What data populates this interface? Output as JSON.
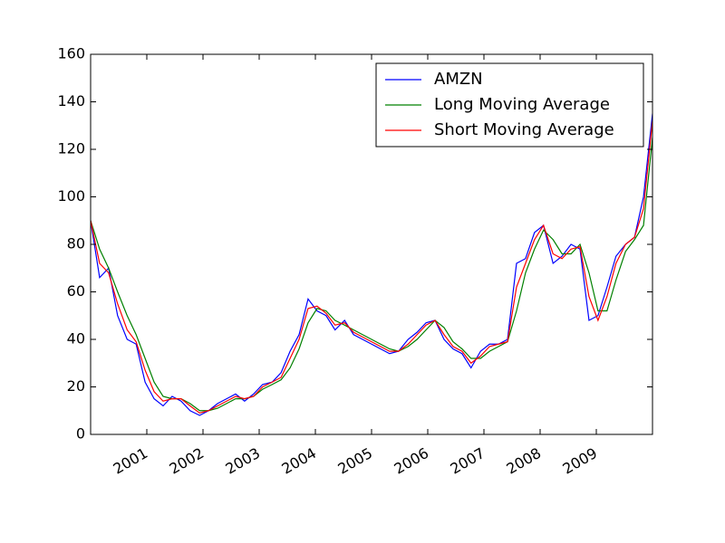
{
  "chart_data": {
    "type": "line",
    "x": [
      2000.0,
      2000.16,
      2000.32,
      2000.48,
      2000.65,
      2000.81,
      2000.97,
      2001.13,
      2001.29,
      2001.45,
      2001.61,
      2001.77,
      2001.94,
      2002.1,
      2002.26,
      2002.42,
      2002.58,
      2002.74,
      2002.9,
      2003.06,
      2003.23,
      2003.39,
      2003.55,
      2003.71,
      2003.87,
      2004.03,
      2004.19,
      2004.35,
      2004.52,
      2004.68,
      2004.84,
      2005.0,
      2005.16,
      2005.32,
      2005.48,
      2005.65,
      2005.81,
      2005.97,
      2006.13,
      2006.29,
      2006.45,
      2006.61,
      2006.77,
      2006.94,
      2007.1,
      2007.26,
      2007.42,
      2007.58,
      2007.74,
      2007.9,
      2008.06,
      2008.23,
      2008.39,
      2008.55,
      2008.71,
      2008.87,
      2009.03,
      2009.19,
      2009.35,
      2009.52,
      2009.68,
      2009.84,
      2010.0
    ],
    "series": [
      {
        "name": "AMZN",
        "color": "#0000ff",
        "values": [
          90,
          66,
          70,
          50,
          40,
          38,
          22,
          15,
          12,
          16,
          14,
          10,
          8,
          10,
          13,
          15,
          17,
          14,
          17,
          21,
          22,
          26,
          35,
          42,
          57,
          52,
          50,
          44,
          48,
          42,
          40,
          38,
          36,
          34,
          35,
          40,
          43,
          47,
          48,
          40,
          36,
          34,
          28,
          35,
          38,
          38,
          40,
          72,
          74,
          85,
          88,
          72,
          75,
          80,
          78,
          48,
          50,
          62,
          75,
          80,
          83,
          100,
          135
        ]
      },
      {
        "name": "Long Moving Average",
        "color": "#008000",
        "values": [
          90,
          78,
          70,
          60,
          50,
          42,
          32,
          22,
          16,
          15,
          15,
          13,
          10,
          10,
          11,
          13,
          15,
          15,
          16,
          19,
          21,
          23,
          28,
          36,
          47,
          53,
          52,
          48,
          46,
          44,
          42,
          40,
          38,
          36,
          35,
          37,
          40,
          44,
          48,
          45,
          39,
          36,
          32,
          32,
          35,
          37,
          39,
          52,
          68,
          78,
          86,
          82,
          76,
          76,
          80,
          68,
          52,
          52,
          65,
          77,
          82,
          88,
          125
        ]
      },
      {
        "name": "Short Moving Average",
        "color": "#ff0000",
        "values": [
          90,
          72,
          68,
          55,
          44,
          39,
          27,
          18,
          14,
          15,
          15,
          12,
          9,
          10,
          12,
          14,
          16,
          15,
          16,
          20,
          22,
          24,
          32,
          40,
          53,
          54,
          51,
          46,
          47,
          43,
          41,
          39,
          37,
          35,
          35,
          38,
          42,
          46,
          48,
          42,
          37,
          35,
          30,
          33,
          37,
          38,
          39,
          62,
          72,
          82,
          88,
          76,
          74,
          78,
          79,
          58,
          48,
          58,
          72,
          80,
          83,
          95,
          132
        ]
      }
    ],
    "xlim": [
      2000,
      2010
    ],
    "xticks": [
      2001,
      2002,
      2003,
      2004,
      2005,
      2006,
      2007,
      2008,
      2009
    ],
    "ylim": [
      0,
      160
    ],
    "yticks": [
      0,
      20,
      40,
      60,
      80,
      100,
      120,
      140,
      160
    ],
    "legend": "upper right"
  }
}
